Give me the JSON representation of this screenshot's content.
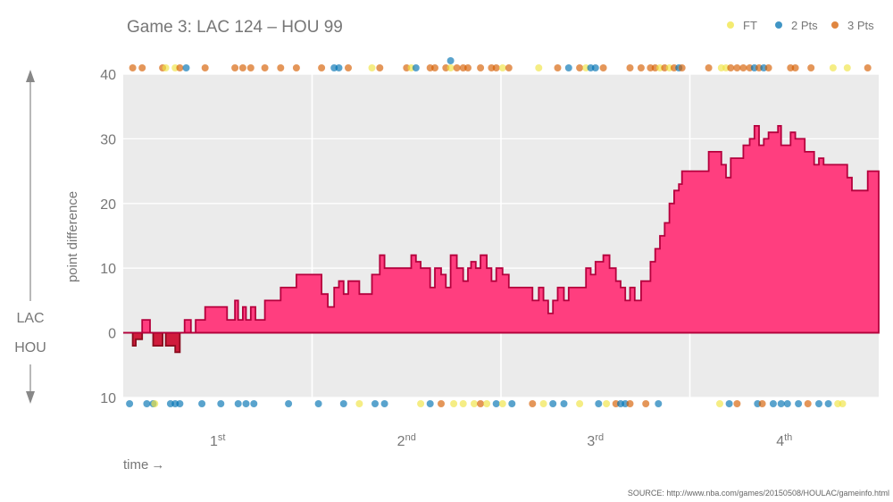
{
  "chart_data": {
    "type": "area",
    "title": "Game 3: LAC 124  –  HOU 99",
    "ylabel": "point difference",
    "xlabel": "time",
    "xlabel_arrow": "→",
    "top_team": "LAC",
    "bottom_team": "HOU",
    "source": "SOURCE: http://www.nba.com/games/20150508/HOULAC/gameinfo.html",
    "x_unit": "game minutes",
    "xlim": [
      0,
      48
    ],
    "ylim": [
      -10,
      40
    ],
    "y_ticks": [
      {
        "value": 40,
        "label": "40"
      },
      {
        "value": 30,
        "label": "30"
      },
      {
        "value": 20,
        "label": "20"
      },
      {
        "value": 10,
        "label": "10"
      },
      {
        "value": 0,
        "label": "0"
      },
      {
        "value": -10,
        "label": "10"
      }
    ],
    "periods": [
      {
        "base": "1",
        "sup": "st",
        "center": 6
      },
      {
        "base": "2",
        "sup": "nd",
        "center": 18
      },
      {
        "base": "3",
        "sup": "rd",
        "center": 30
      },
      {
        "base": "4",
        "sup": "th",
        "center": 42
      }
    ],
    "period_boundaries": [
      12,
      24,
      36
    ],
    "legend": [
      {
        "label": "FT",
        "color": "#f0e442"
      },
      {
        "label": "2 Pts",
        "color": "#0072b2"
      },
      {
        "label": "3 Pts",
        "color": "#d55e00"
      }
    ],
    "colors": {
      "lead_fill": "#ff3e7f",
      "lead_line": "#b5003d",
      "trail_fill": "#d01c3c",
      "trail_line": "#8a0c1e",
      "plot_bg": "#ebebeb",
      "grid": "#ffffff"
    },
    "series": [
      {
        "name": "point difference",
        "steps": [
          [
            0,
            0
          ],
          [
            0.6,
            -2
          ],
          [
            0.8,
            -1
          ],
          [
            1.2,
            2
          ],
          [
            1.7,
            0
          ],
          [
            1.9,
            -2
          ],
          [
            2.5,
            0
          ],
          [
            2.7,
            -2
          ],
          [
            3.3,
            -3
          ],
          [
            3.6,
            0
          ],
          [
            3.9,
            2
          ],
          [
            4.3,
            0
          ],
          [
            4.6,
            2
          ],
          [
            5.0,
            2
          ],
          [
            5.2,
            4
          ],
          [
            6.6,
            2
          ],
          [
            7.1,
            5
          ],
          [
            7.3,
            2
          ],
          [
            7.6,
            4
          ],
          [
            7.8,
            2
          ],
          [
            8.1,
            4
          ],
          [
            8.4,
            2
          ],
          [
            9.0,
            5
          ],
          [
            10.0,
            7
          ],
          [
            11.0,
            9
          ],
          [
            12.6,
            6
          ],
          [
            13.0,
            4
          ],
          [
            13.4,
            7
          ],
          [
            13.7,
            8
          ],
          [
            14.0,
            6
          ],
          [
            14.3,
            8
          ],
          [
            15.0,
            6
          ],
          [
            15.8,
            9
          ],
          [
            16.3,
            12
          ],
          [
            16.6,
            10
          ],
          [
            18.0,
            10
          ],
          [
            18.3,
            12
          ],
          [
            18.6,
            11
          ],
          [
            18.9,
            10
          ],
          [
            19.5,
            7
          ],
          [
            19.8,
            10
          ],
          [
            20.2,
            9
          ],
          [
            20.5,
            7
          ],
          [
            20.8,
            12
          ],
          [
            21.2,
            10
          ],
          [
            21.6,
            8
          ],
          [
            21.9,
            10
          ],
          [
            22.1,
            11
          ],
          [
            22.4,
            10
          ],
          [
            22.7,
            12
          ],
          [
            23.1,
            10
          ],
          [
            23.4,
            8
          ],
          [
            23.7,
            10
          ],
          [
            24.1,
            9
          ],
          [
            24.5,
            7
          ],
          [
            25.5,
            7
          ],
          [
            26.0,
            5
          ],
          [
            26.4,
            7
          ],
          [
            26.7,
            5
          ],
          [
            27.0,
            3
          ],
          [
            27.3,
            5
          ],
          [
            27.6,
            7
          ],
          [
            28.0,
            5
          ],
          [
            28.3,
            7
          ],
          [
            29.0,
            7
          ],
          [
            29.4,
            10
          ],
          [
            29.7,
            9
          ],
          [
            30.0,
            11
          ],
          [
            30.5,
            12
          ],
          [
            30.9,
            10
          ],
          [
            31.3,
            8
          ],
          [
            31.6,
            7
          ],
          [
            31.9,
            5
          ],
          [
            32.2,
            7
          ],
          [
            32.5,
            5
          ],
          [
            32.9,
            8
          ],
          [
            33.2,
            8
          ],
          [
            33.5,
            11
          ],
          [
            33.8,
            13
          ],
          [
            34.1,
            15
          ],
          [
            34.4,
            17
          ],
          [
            34.7,
            20
          ],
          [
            35.0,
            22
          ],
          [
            35.3,
            23
          ],
          [
            35.5,
            25
          ],
          [
            36.5,
            25
          ],
          [
            37.2,
            28
          ],
          [
            38.0,
            26
          ],
          [
            38.3,
            24
          ],
          [
            38.6,
            27
          ],
          [
            39.0,
            27
          ],
          [
            39.4,
            29
          ],
          [
            39.8,
            30
          ],
          [
            40.1,
            32
          ],
          [
            40.4,
            29
          ],
          [
            40.7,
            30
          ],
          [
            41.0,
            31
          ],
          [
            41.3,
            31
          ],
          [
            41.6,
            32
          ],
          [
            41.8,
            29
          ],
          [
            42.4,
            31
          ],
          [
            42.7,
            30
          ],
          [
            43.3,
            28
          ],
          [
            43.7,
            28
          ],
          [
            43.9,
            26
          ],
          [
            44.2,
            27
          ],
          [
            44.5,
            26
          ],
          [
            45.1,
            26
          ],
          [
            45.6,
            26
          ],
          [
            46.0,
            24
          ],
          [
            46.3,
            22
          ],
          [
            46.9,
            22
          ],
          [
            47.3,
            25
          ],
          [
            48.0,
            25
          ]
        ]
      }
    ],
    "scoring_events": {
      "top": [
        [
          0.6,
          2,
          1
        ],
        [
          1.2,
          2,
          1
        ],
        [
          2.5,
          2,
          1
        ],
        [
          2.7,
          0,
          1
        ],
        [
          3.3,
          0,
          1
        ],
        [
          3.6,
          2,
          1
        ],
        [
          4.0,
          1,
          1
        ],
        [
          5.2,
          2,
          1
        ],
        [
          7.1,
          2,
          1
        ],
        [
          7.6,
          2,
          1
        ],
        [
          8.1,
          2,
          1
        ],
        [
          9.0,
          2,
          1
        ],
        [
          10.0,
          2,
          1
        ],
        [
          11.0,
          2,
          1
        ],
        [
          12.6,
          2,
          1
        ],
        [
          13.4,
          1,
          1
        ],
        [
          13.7,
          1,
          1
        ],
        [
          14.3,
          2,
          1
        ],
        [
          15.8,
          0,
          1
        ],
        [
          16.3,
          2,
          1
        ],
        [
          18.0,
          2,
          1
        ],
        [
          18.3,
          0,
          1
        ],
        [
          18.6,
          1,
          1
        ],
        [
          19.5,
          2,
          1
        ],
        [
          19.8,
          2,
          1
        ],
        [
          20.5,
          2,
          1
        ],
        [
          20.8,
          0,
          1
        ],
        [
          20.8,
          1,
          1
        ],
        [
          21.2,
          2,
          1
        ],
        [
          21.6,
          2,
          1
        ],
        [
          21.9,
          2,
          1
        ],
        [
          22.7,
          2,
          1
        ],
        [
          23.4,
          2,
          1
        ],
        [
          23.7,
          2,
          1
        ],
        [
          24.1,
          0,
          1
        ],
        [
          24.5,
          2,
          1
        ],
        [
          26.4,
          0,
          1
        ],
        [
          27.6,
          2,
          1
        ],
        [
          28.3,
          1,
          1
        ],
        [
          29.0,
          2,
          1
        ],
        [
          29.4,
          0,
          1
        ],
        [
          29.7,
          1,
          1
        ],
        [
          30.0,
          1,
          1
        ],
        [
          30.5,
          2,
          1
        ],
        [
          32.2,
          2,
          1
        ],
        [
          32.9,
          2,
          1
        ],
        [
          33.5,
          2,
          1
        ],
        [
          33.8,
          2,
          1
        ],
        [
          34.1,
          0,
          1
        ],
        [
          34.4,
          2,
          1
        ],
        [
          34.7,
          0,
          1
        ],
        [
          35.0,
          2,
          1
        ],
        [
          35.3,
          1,
          1
        ],
        [
          35.5,
          2,
          1
        ],
        [
          37.2,
          2,
          1
        ],
        [
          38.0,
          0,
          1
        ],
        [
          38.3,
          0,
          1
        ],
        [
          38.6,
          2,
          1
        ],
        [
          39.0,
          2,
          1
        ],
        [
          39.4,
          2,
          1
        ],
        [
          39.8,
          2,
          1
        ],
        [
          40.1,
          1,
          1
        ],
        [
          40.4,
          2,
          1
        ],
        [
          40.7,
          1,
          1
        ],
        [
          41.0,
          2,
          1
        ],
        [
          42.4,
          2,
          1
        ],
        [
          42.7,
          2,
          1
        ],
        [
          43.7,
          2,
          1
        ],
        [
          45.1,
          0,
          1
        ],
        [
          46.0,
          0,
          1
        ],
        [
          47.3,
          2,
          1
        ]
      ],
      "bottom": [
        [
          0.4,
          1,
          1
        ],
        [
          1.5,
          1,
          1
        ],
        [
          1.9,
          1,
          1
        ],
        [
          2.0,
          0,
          1
        ],
        [
          3.0,
          1,
          1
        ],
        [
          3.3,
          1,
          1
        ],
        [
          3.6,
          1,
          1
        ],
        [
          5.0,
          1,
          1
        ],
        [
          6.2,
          1,
          1
        ],
        [
          7.3,
          1,
          1
        ],
        [
          7.8,
          1,
          1
        ],
        [
          8.3,
          1,
          1
        ],
        [
          10.5,
          1,
          1
        ],
        [
          12.4,
          1,
          1
        ],
        [
          14.0,
          1,
          1
        ],
        [
          15.0,
          0,
          1
        ],
        [
          16.0,
          1,
          1
        ],
        [
          16.6,
          1,
          1
        ],
        [
          18.9,
          0,
          1
        ],
        [
          19.5,
          1,
          1
        ],
        [
          20.2,
          2,
          1
        ],
        [
          21.0,
          0,
          1
        ],
        [
          21.6,
          0,
          1
        ],
        [
          22.3,
          0,
          1
        ],
        [
          22.7,
          2,
          1
        ],
        [
          23.1,
          0,
          1
        ],
        [
          23.7,
          1,
          1
        ],
        [
          24.1,
          0,
          1
        ],
        [
          24.7,
          1,
          1
        ],
        [
          26.0,
          2,
          1
        ],
        [
          26.7,
          0,
          1
        ],
        [
          27.3,
          1,
          1
        ],
        [
          28.0,
          1,
          1
        ],
        [
          29.0,
          0,
          1
        ],
        [
          30.2,
          1,
          1
        ],
        [
          30.7,
          0,
          1
        ],
        [
          31.3,
          2,
          1
        ],
        [
          31.6,
          1,
          1
        ],
        [
          31.9,
          1,
          1
        ],
        [
          32.2,
          2,
          1
        ],
        [
          33.2,
          2,
          1
        ],
        [
          34.0,
          1,
          1
        ],
        [
          37.9,
          0,
          1
        ],
        [
          38.5,
          1,
          1
        ],
        [
          39.0,
          2,
          1
        ],
        [
          40.3,
          1,
          1
        ],
        [
          40.6,
          2,
          1
        ],
        [
          41.3,
          1,
          1
        ],
        [
          41.8,
          1,
          1
        ],
        [
          42.2,
          1,
          1
        ],
        [
          42.9,
          1,
          1
        ],
        [
          43.5,
          2,
          1
        ],
        [
          44.2,
          1,
          1
        ],
        [
          44.8,
          1,
          1
        ],
        [
          45.4,
          0,
          1
        ],
        [
          45.7,
          0,
          1
        ]
      ]
    }
  }
}
